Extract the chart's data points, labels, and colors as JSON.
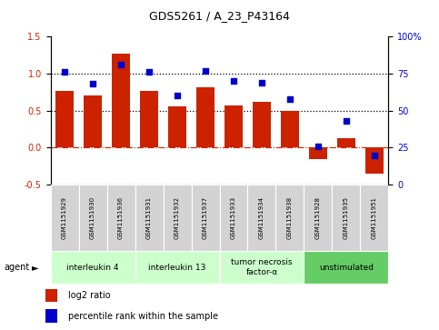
{
  "title": "GDS5261 / A_23_P43164",
  "samples": [
    "GSM1151929",
    "GSM1151930",
    "GSM1151936",
    "GSM1151931",
    "GSM1151932",
    "GSM1151937",
    "GSM1151933",
    "GSM1151934",
    "GSM1151938",
    "GSM1151928",
    "GSM1151935",
    "GSM1151951"
  ],
  "log2_ratio": [
    0.77,
    0.7,
    1.27,
    0.76,
    0.56,
    0.81,
    0.57,
    0.62,
    0.5,
    -0.15,
    0.13,
    -0.35
  ],
  "percentile": [
    76,
    68,
    81,
    76,
    60,
    77,
    70,
    69,
    58,
    26,
    43,
    20
  ],
  "agents": [
    {
      "label": "interleukin 4",
      "indices": [
        0,
        1,
        2
      ],
      "color": "#ccffcc"
    },
    {
      "label": "interleukin 13",
      "indices": [
        3,
        4,
        5
      ],
      "color": "#ccffcc"
    },
    {
      "label": "tumor necrosis\nfactor-α",
      "indices": [
        6,
        7,
        8
      ],
      "color": "#ccffcc"
    },
    {
      "label": "unstimulated",
      "indices": [
        9,
        10,
        11
      ],
      "color": "#66cc66"
    }
  ],
  "bar_color": "#cc2200",
  "dot_color": "#0000cc",
  "left_ylim": [
    -0.5,
    1.5
  ],
  "right_ylim": [
    0,
    100
  ],
  "left_yticks": [
    -0.5,
    0.0,
    0.5,
    1.0,
    1.5
  ],
  "right_yticks": [
    0,
    25,
    50,
    75,
    100
  ],
  "right_yticklabels": [
    "0",
    "25",
    "50",
    "75",
    "100%"
  ],
  "hline_y": [
    0.5,
    1.0
  ],
  "zero_line_y": 0.0,
  "bg_color": "#ffffff"
}
